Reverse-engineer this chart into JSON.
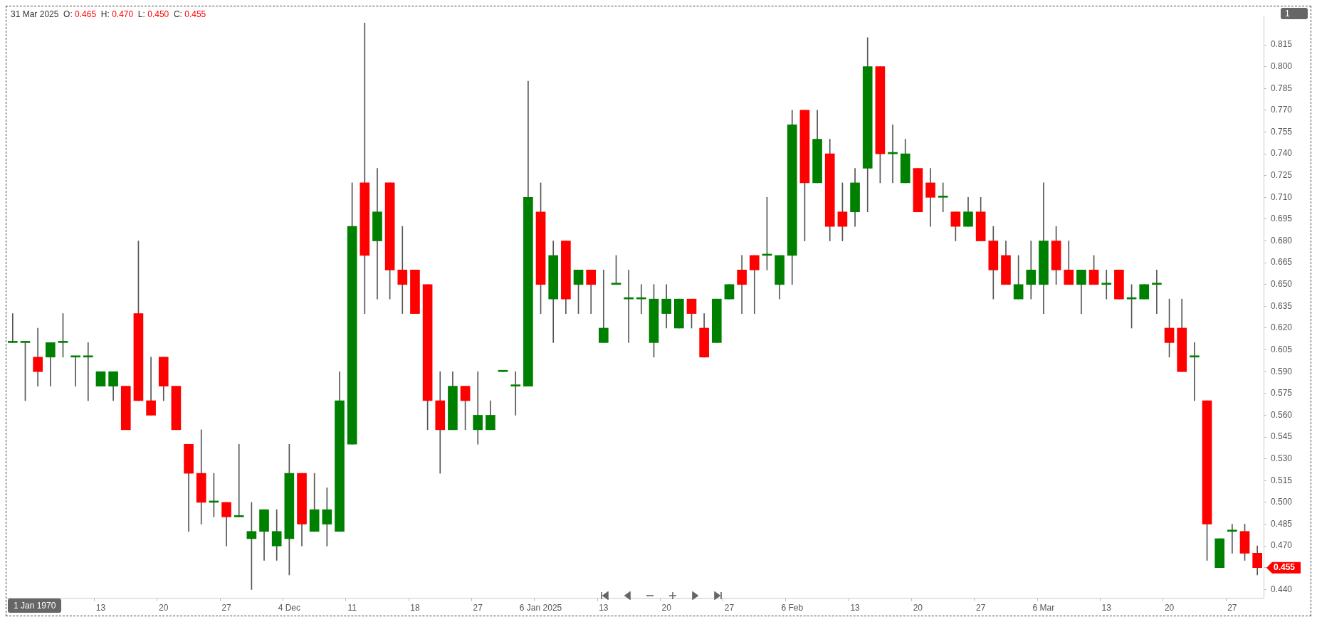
{
  "chart_data": {
    "type": "candlestick",
    "title": "31 Mar 2025  O: 0.465  H: 0.470  L: 0.450  C: 0.455",
    "categories": [
      null,
      null,
      null,
      null,
      null,
      null,
      null,
      "13",
      null,
      null,
      null,
      null,
      "20",
      null,
      null,
      null,
      null,
      "27",
      null,
      null,
      null,
      null,
      "4 Dec",
      null,
      null,
      null,
      null,
      "11",
      null,
      null,
      null,
      null,
      "18",
      null,
      null,
      null,
      null,
      "27",
      null,
      null,
      null,
      null,
      "6 Jan 2025",
      null,
      null,
      null,
      null,
      "13",
      null,
      null,
      null,
      null,
      "20",
      null,
      null,
      null,
      null,
      "27",
      null,
      null,
      null,
      null,
      "6 Feb",
      null,
      null,
      null,
      null,
      "13",
      null,
      null,
      null,
      null,
      "20",
      null,
      null,
      null,
      null,
      "27",
      null,
      null,
      null,
      null,
      "6 Mar",
      null,
      null,
      null,
      null,
      "13",
      null,
      null,
      null,
      null,
      "20",
      null,
      null,
      null,
      null,
      "27",
      null,
      null
    ],
    "ohlc": [
      [
        0.61,
        0.63,
        0.61,
        0.61
      ],
      [
        0.61,
        0.61,
        0.57,
        0.61
      ],
      [
        0.6,
        0.62,
        0.58,
        0.59
      ],
      [
        0.6,
        0.61,
        0.58,
        0.61
      ],
      [
        0.61,
        0.63,
        0.6,
        0.61
      ],
      [
        0.6,
        0.6,
        0.58,
        0.6
      ],
      [
        0.6,
        0.61,
        0.57,
        0.6
      ],
      [
        0.58,
        0.59,
        0.58,
        0.59
      ],
      [
        0.58,
        0.59,
        0.57,
        0.59
      ],
      [
        0.58,
        0.58,
        0.55,
        0.55
      ],
      [
        0.63,
        0.68,
        0.57,
        0.57
      ],
      [
        0.57,
        0.6,
        0.56,
        0.56
      ],
      [
        0.6,
        0.6,
        0.57,
        0.58
      ],
      [
        0.58,
        0.58,
        0.55,
        0.55
      ],
      [
        0.54,
        0.54,
        0.48,
        0.52
      ],
      [
        0.52,
        0.55,
        0.485,
        0.5
      ],
      [
        0.5,
        0.52,
        0.49,
        0.5
      ],
      [
        0.5,
        0.5,
        0.47,
        0.49
      ],
      [
        0.49,
        0.54,
        0.49,
        0.49
      ],
      [
        0.475,
        0.5,
        0.44,
        0.48
      ],
      [
        0.48,
        0.495,
        0.46,
        0.495
      ],
      [
        0.47,
        0.495,
        0.46,
        0.48
      ],
      [
        0.475,
        0.54,
        0.45,
        0.52
      ],
      [
        0.52,
        0.52,
        0.47,
        0.485
      ],
      [
        0.48,
        0.52,
        0.48,
        0.495
      ],
      [
        0.485,
        0.51,
        0.47,
        0.495
      ],
      [
        0.48,
        0.59,
        0.48,
        0.57
      ],
      [
        0.54,
        0.72,
        0.54,
        0.69
      ],
      [
        0.72,
        0.83,
        0.63,
        0.67
      ],
      [
        0.68,
        0.73,
        0.64,
        0.7
      ],
      [
        0.72,
        0.72,
        0.64,
        0.66
      ],
      [
        0.66,
        0.69,
        0.63,
        0.65
      ],
      [
        0.66,
        0.66,
        0.63,
        0.63
      ],
      [
        0.65,
        0.65,
        0.55,
        0.57
      ],
      [
        0.57,
        0.59,
        0.52,
        0.55
      ],
      [
        0.55,
        0.59,
        0.55,
        0.58
      ],
      [
        0.58,
        0.58,
        0.55,
        0.57
      ],
      [
        0.55,
        0.59,
        0.54,
        0.56
      ],
      [
        0.55,
        0.57,
        0.55,
        0.56
      ],
      [
        0.59,
        0.59,
        0.59,
        0.59
      ],
      [
        0.58,
        0.59,
        0.56,
        0.58
      ],
      [
        0.58,
        0.79,
        0.58,
        0.71
      ],
      [
        0.7,
        0.72,
        0.63,
        0.65
      ],
      [
        0.64,
        0.68,
        0.61,
        0.67
      ],
      [
        0.68,
        0.68,
        0.63,
        0.64
      ],
      [
        0.65,
        0.66,
        0.63,
        0.66
      ],
      [
        0.66,
        0.66,
        0.63,
        0.65
      ],
      [
        0.61,
        0.66,
        0.61,
        0.62
      ],
      [
        0.65,
        0.67,
        0.65,
        0.65
      ],
      [
        0.64,
        0.66,
        0.61,
        0.64
      ],
      [
        0.64,
        0.65,
        0.63,
        0.64
      ],
      [
        0.61,
        0.65,
        0.6,
        0.64
      ],
      [
        0.63,
        0.65,
        0.62,
        0.64
      ],
      [
        0.62,
        0.64,
        0.62,
        0.64
      ],
      [
        0.64,
        0.64,
        0.62,
        0.63
      ],
      [
        0.62,
        0.63,
        0.6,
        0.6
      ],
      [
        0.61,
        0.64,
        0.61,
        0.64
      ],
      [
        0.64,
        0.65,
        0.64,
        0.65
      ],
      [
        0.66,
        0.67,
        0.63,
        0.65
      ],
      [
        0.67,
        0.67,
        0.63,
        0.66
      ],
      [
        0.67,
        0.71,
        0.66,
        0.67
      ],
      [
        0.65,
        0.67,
        0.64,
        0.67
      ],
      [
        0.67,
        0.77,
        0.65,
        0.76
      ],
      [
        0.77,
        0.77,
        0.68,
        0.72
      ],
      [
        0.72,
        0.77,
        0.72,
        0.75
      ],
      [
        0.74,
        0.75,
        0.68,
        0.69
      ],
      [
        0.7,
        0.72,
        0.68,
        0.69
      ],
      [
        0.7,
        0.73,
        0.69,
        0.72
      ],
      [
        0.73,
        0.82,
        0.7,
        0.8
      ],
      [
        0.8,
        0.8,
        0.72,
        0.74
      ],
      [
        0.74,
        0.76,
        0.72,
        0.74
      ],
      [
        0.72,
        0.75,
        0.72,
        0.74
      ],
      [
        0.73,
        0.73,
        0.7,
        0.7
      ],
      [
        0.72,
        0.73,
        0.69,
        0.71
      ],
      [
        0.71,
        0.72,
        0.7,
        0.71
      ],
      [
        0.7,
        0.7,
        0.68,
        0.69
      ],
      [
        0.69,
        0.71,
        0.69,
        0.7
      ],
      [
        0.7,
        0.71,
        0.68,
        0.68
      ],
      [
        0.68,
        0.69,
        0.64,
        0.66
      ],
      [
        0.67,
        0.68,
        0.65,
        0.65
      ],
      [
        0.64,
        0.67,
        0.64,
        0.65
      ],
      [
        0.65,
        0.68,
        0.64,
        0.66
      ],
      [
        0.65,
        0.72,
        0.63,
        0.68
      ],
      [
        0.68,
        0.69,
        0.65,
        0.66
      ],
      [
        0.66,
        0.68,
        0.65,
        0.65
      ],
      [
        0.65,
        0.66,
        0.63,
        0.66
      ],
      [
        0.66,
        0.67,
        0.65,
        0.65
      ],
      [
        0.65,
        0.66,
        0.64,
        0.65
      ],
      [
        0.66,
        0.66,
        0.64,
        0.64
      ],
      [
        0.64,
        0.65,
        0.62,
        0.64
      ],
      [
        0.64,
        0.65,
        0.64,
        0.65
      ],
      [
        0.65,
        0.66,
        0.63,
        0.65
      ],
      [
        0.62,
        0.64,
        0.6,
        0.61
      ],
      [
        0.62,
        0.64,
        0.59,
        0.59
      ],
      [
        0.6,
        0.61,
        0.57,
        0.6
      ],
      [
        0.57,
        0.57,
        0.46,
        0.485
      ],
      [
        0.455,
        0.475,
        0.455,
        0.475
      ],
      [
        0.48,
        0.485,
        0.465,
        0.48
      ],
      [
        0.48,
        0.485,
        0.46,
        0.465
      ],
      [
        0.465,
        0.47,
        0.45,
        0.455
      ]
    ],
    "colors": [
      "#008000",
      "#008000",
      "#ff0000",
      "#008000",
      "#008000",
      "#008000",
      "#008000",
      "#008000",
      "#008000",
      "#ff0000",
      "#ff0000",
      "#ff0000",
      "#ff0000",
      "#ff0000",
      "#ff0000",
      "#ff0000",
      "#008000",
      "#ff0000",
      "#008000",
      "#008000",
      "#008000",
      "#008000",
      "#008000",
      "#ff0000",
      "#008000",
      "#008000",
      "#008000",
      "#008000",
      "#ff0000",
      "#008000",
      "#ff0000",
      "#ff0000",
      "#ff0000",
      "#ff0000",
      "#ff0000",
      "#008000",
      "#ff0000",
      "#008000",
      "#008000",
      "#008000",
      "#008000",
      "#008000",
      "#ff0000",
      "#008000",
      "#ff0000",
      "#008000",
      "#ff0000",
      "#008000",
      "#008000",
      "#008000",
      "#008000",
      "#008000",
      "#008000",
      "#008000",
      "#ff0000",
      "#ff0000",
      "#008000",
      "#008000",
      "#ff0000",
      "#ff0000",
      "#008000",
      "#008000",
      "#008000",
      "#ff0000",
      "#008000",
      "#ff0000",
      "#ff0000",
      "#008000",
      "#008000",
      "#ff0000",
      "#008000",
      "#008000",
      "#ff0000",
      "#ff0000",
      "#008000",
      "#ff0000",
      "#008000",
      "#ff0000",
      "#ff0000",
      "#ff0000",
      "#008000",
      "#008000",
      "#008000",
      "#ff0000",
      "#ff0000",
      "#008000",
      "#ff0000",
      "#008000",
      "#ff0000",
      "#008000",
      "#008000",
      "#008000",
      "#ff0000",
      "#ff0000",
      "#008000",
      "#ff0000",
      "#008000",
      "#008000",
      "#ff0000",
      "#ff0000"
    ],
    "ylim": [
      0.434,
      0.835
    ],
    "yticks": [
      {
        "value": 0.44,
        "label": "0.440"
      },
      {
        "value": 0.455,
        "label": null
      },
      {
        "value": 0.47,
        "label": "0.470"
      },
      {
        "value": 0.485,
        "label": "0.485"
      },
      {
        "value": 0.5,
        "label": "0.500"
      },
      {
        "value": 0.515,
        "label": "0.515"
      },
      {
        "value": 0.53,
        "label": "0.530"
      },
      {
        "value": 0.545,
        "label": "0.545"
      },
      {
        "value": 0.56,
        "label": "0.560"
      },
      {
        "value": 0.575,
        "label": "0.575"
      },
      {
        "value": 0.59,
        "label": "0.590"
      },
      {
        "value": 0.605,
        "label": "0.605"
      },
      {
        "value": 0.62,
        "label": "0.620"
      },
      {
        "value": 0.635,
        "label": "0.635"
      },
      {
        "value": 0.65,
        "label": "0.650"
      },
      {
        "value": 0.665,
        "label": "0.665"
      },
      {
        "value": 0.68,
        "label": "0.680"
      },
      {
        "value": 0.695,
        "label": "0.695"
      },
      {
        "value": 0.71,
        "label": "0.710"
      },
      {
        "value": 0.725,
        "label": "0.725"
      },
      {
        "value": 0.74,
        "label": "0.740"
      },
      {
        "value": 0.755,
        "label": "0.755"
      },
      {
        "value": 0.77,
        "label": "0.770"
      },
      {
        "value": 0.785,
        "label": "0.785"
      },
      {
        "value": 0.8,
        "label": "0.800"
      },
      {
        "value": 0.815,
        "label": "0.815"
      }
    ],
    "annotations": [
      "1 Jan 1970",
      "1",
      "0.455"
    ],
    "grid": false,
    "legend": false
  }
}
